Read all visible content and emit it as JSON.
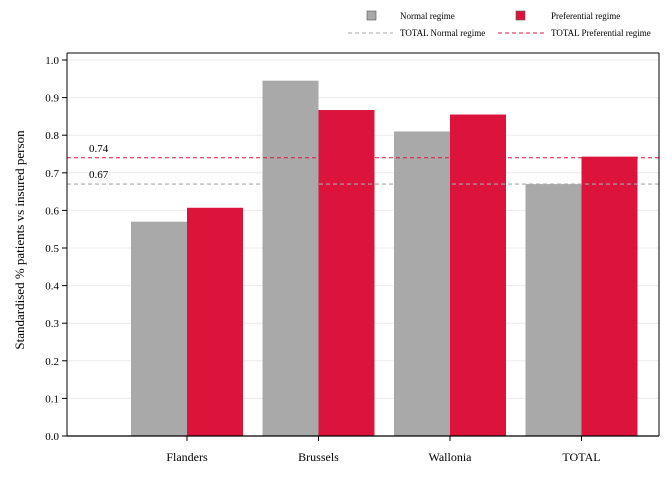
{
  "chart_data": {
    "type": "bar",
    "title": "",
    "xlabel": "",
    "ylabel": "Standardised % patients vs insured person",
    "categories": [
      "Flanders",
      "Brussels",
      "Wallonia",
      "TOTAL"
    ],
    "series": [
      {
        "name": "Normal regime",
        "values": [
          0.57,
          0.945,
          0.81,
          0.67
        ],
        "color": "#a9a9a9"
      },
      {
        "name": "Preferential regime",
        "values": [
          0.607,
          0.867,
          0.855,
          0.743
        ],
        "color": "#dc143c"
      }
    ],
    "reference_lines": [
      {
        "name": "TOTAL Normal regime",
        "value": 0.67,
        "label": "0.67",
        "color": "#a9a9a9"
      },
      {
        "name": "TOTAL Preferential regime",
        "value": 0.74,
        "label": "0.74",
        "color": "#dc143c"
      }
    ],
    "ylim": [
      0,
      1.0
    ],
    "yticks": [
      "0.0",
      "0.1",
      "0.2",
      "0.3",
      "0.4",
      "0.5",
      "0.6",
      "0.7",
      "0.8",
      "0.9",
      "1.0"
    ],
    "grid": true,
    "legend_position": "top-right"
  }
}
